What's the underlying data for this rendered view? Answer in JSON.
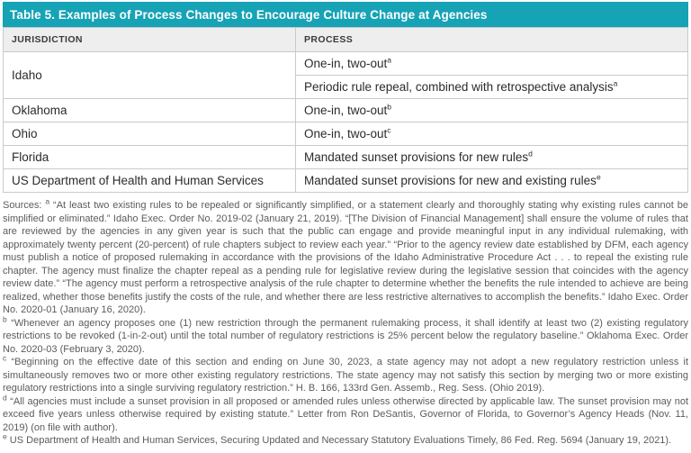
{
  "title": "Table 5. Examples of Process Changes to Encourage Culture Change at Agencies",
  "colors": {
    "accent_teal": "#16a3b5",
    "header_gray": "#eeeeef",
    "border_gray": "#c7cacc",
    "footnote_gray": "#5b5b5d"
  },
  "table": {
    "columns": [
      "JURISDICTION",
      "PROCESS"
    ],
    "rows": [
      {
        "jurisdiction": "Idaho",
        "process": "One-in, two-out",
        "note": "a"
      },
      {
        "jurisdiction": "",
        "process": "Periodic rule repeal, combined with retrospective analysis",
        "note": "a"
      },
      {
        "jurisdiction": "Oklahoma",
        "process": "One-in, two-out",
        "note": "b"
      },
      {
        "jurisdiction": "Ohio",
        "process": "One-in, two-out",
        "note": "c"
      },
      {
        "jurisdiction": "Florida",
        "process": "Mandated sunset provisions for new rules",
        "note": "d"
      },
      {
        "jurisdiction": "US Department of Health and Human Services",
        "process": "Mandated sunset provisions for new and existing rules",
        "note": "e"
      }
    ]
  },
  "sources": {
    "label": "Sources:",
    "footnotes": [
      {
        "marker": "a",
        "text": "“At least two existing rules to be repealed or significantly simplified, or a statement clearly and thoroughly stating why existing rules cannot be simplified or eliminated.” Idaho Exec. Order No. 2019-02 (January 21, 2019). “[The Division of Financial Management] shall ensure the volume of rules that are reviewed by the agencies in any given year is such that the public can engage and provide meaningful input in any individual rulemaking, with approximately twenty percent (20-percent) of rule chapters subject to review each year.” “Prior to the agency review date established by DFM, each agency must publish a notice of proposed rulemaking in accordance with the provisions of the Idaho Administrative Procedure Act . . . to repeal the existing rule chapter. The agency must finalize the chapter repeal as a pending rule for legislative review during the legislative session that coincides with the agency review date.” “The agency must perform a retrospective analysis of the rule chapter to determine whether the benefits the rule intended to achieve are being realized, whether those benefits justify the costs of the rule, and whether there are less restrictive alternatives to accomplish the benefits.” Idaho Exec. Order No. 2020-01 (January 16, 2020)."
      },
      {
        "marker": "b",
        "text": "“Whenever an agency proposes one (1) new restriction through the permanent rulemaking process, it shall identify at least two (2) existing regulatory restrictions to be revoked (1-in-2-out) until the total number of regulatory restrictions is 25% percent below the regulatory baseline.” Oklahoma Exec. Order No. 2020-03 (February 3, 2020)."
      },
      {
        "marker": "c",
        "text": "“Beginning on the effective date of this section and ending on June 30, 2023, a state agency may not adopt a new regulatory restriction unless it simultaneously removes two or more other existing regulatory restrictions. The state agency may not satisfy this section by merging two or more existing regulatory restrictions into a single surviving regulatory restriction.” H. B. 166, 133rd Gen. Assemb., Reg. Sess. (Ohio 2019)."
      },
      {
        "marker": "d",
        "text": "“All agencies must include a sunset provision in all proposed or amended rules unless otherwise directed by applicable law. The sunset provision may not exceed five years unless otherwise required by existing statute.” Letter from Ron DeSantis, Governor of Florida, to Governor’s Agency Heads (Nov. 11, 2019) (on file with author)."
      },
      {
        "marker": "e",
        "text": "US Department of Health and Human Services, Securing Updated and Necessary Statutory Evaluations Timely, 86 Fed. Reg. 5694 (January 19, 2021)."
      }
    ]
  }
}
